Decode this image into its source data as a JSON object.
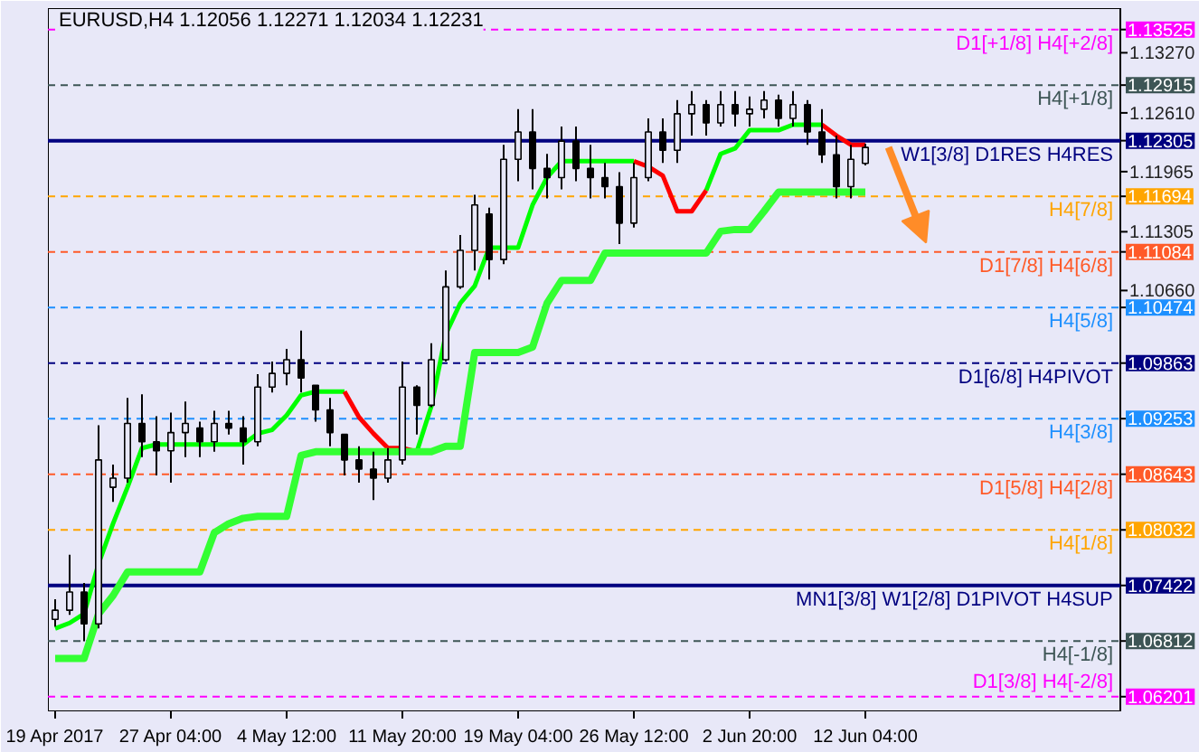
{
  "chart_data": {
    "type": "candlestick",
    "title": "EURUSD,H4 1.12056 1.12271 1.12034 1.12231",
    "categories": [
      "19 Apr 2017",
      null,
      null,
      null,
      null,
      null,
      null,
      null,
      "27 Apr 04:00",
      null,
      null,
      null,
      null,
      null,
      null,
      null,
      "4 May 12:00",
      null,
      null,
      null,
      null,
      null,
      null,
      null,
      "11 May 20:00",
      null,
      null,
      null,
      null,
      null,
      null,
      null,
      "19 May 04:00",
      null,
      null,
      null,
      null,
      null,
      null,
      null,
      "26 May 12:00",
      null,
      null,
      null,
      null,
      null,
      null,
      null,
      "2 Jun 20:00",
      null,
      null,
      null,
      null,
      null,
      null,
      null,
      "12 Jun 04:00"
    ],
    "ohlc": [
      [
        1.0705,
        1.0727,
        1.0697,
        1.0715
      ],
      [
        1.0715,
        1.0776,
        1.071,
        1.0735
      ],
      [
        1.0735,
        1.0745,
        1.0681,
        1.07
      ],
      [
        1.07,
        1.0918,
        1.0695,
        1.088
      ],
      [
        1.085,
        1.0875,
        1.0834,
        1.086
      ],
      [
        1.086,
        1.0948,
        1.0855,
        1.092
      ],
      [
        1.092,
        1.0952,
        1.0883,
        1.09
      ],
      [
        1.09,
        1.0928,
        1.0863,
        1.089
      ],
      [
        1.089,
        1.0932,
        1.0855,
        1.091
      ],
      [
        1.091,
        1.0944,
        1.0883,
        1.092
      ],
      [
        1.0915,
        1.0922,
        1.0883,
        1.09
      ],
      [
        1.09,
        1.0934,
        1.0889,
        1.092
      ],
      [
        1.092,
        1.0934,
        1.0908,
        1.0915
      ],
      [
        1.0915,
        1.0928,
        1.0875,
        1.09
      ],
      [
        1.09,
        1.0974,
        1.0895,
        1.096
      ],
      [
        1.096,
        1.0988,
        1.0954,
        1.0975
      ],
      [
        1.0975,
        1.1002,
        1.0962,
        1.099
      ],
      [
        1.099,
        1.1022,
        1.0954,
        1.097
      ],
      [
        1.0962,
        1.0962,
        1.0922,
        1.0935
      ],
      [
        1.0935,
        1.0948,
        1.0895,
        1.091
      ],
      [
        1.0908,
        1.0908,
        1.0863,
        1.088
      ],
      [
        1.088,
        1.0895,
        1.0855,
        1.087
      ],
      [
        1.087,
        1.0889,
        1.0836,
        1.086
      ],
      [
        1.086,
        1.0893,
        1.0855,
        1.088
      ],
      [
        1.088,
        1.0988,
        1.0875,
        1.096
      ],
      [
        1.096,
        1.0962,
        1.0908,
        1.094
      ],
      [
        1.094,
        1.1008,
        1.0938,
        1.099
      ],
      [
        1.099,
        1.1088,
        1.0988,
        1.107
      ],
      [
        1.107,
        1.1127,
        1.1068,
        1.111
      ],
      [
        1.111,
        1.1171,
        1.1088,
        1.116
      ],
      [
        1.115,
        1.1157,
        1.1078,
        1.11
      ],
      [
        1.11,
        1.1226,
        1.1095,
        1.121
      ],
      [
        1.121,
        1.1265,
        1.1186,
        1.124
      ],
      [
        1.124,
        1.1265,
        1.1177,
        1.12
      ],
      [
        1.12,
        1.1216,
        1.1167,
        1.119
      ],
      [
        1.119,
        1.1246,
        1.1177,
        1.123
      ],
      [
        1.123,
        1.1246,
        1.1186,
        1.12
      ],
      [
        1.12,
        1.1226,
        1.1167,
        1.119
      ],
      [
        1.119,
        1.1206,
        1.1167,
        1.118
      ],
      [
        1.118,
        1.1196,
        1.1117,
        1.114
      ],
      [
        1.114,
        1.1206,
        1.1135,
        1.119
      ],
      [
        1.119,
        1.1255,
        1.1186,
        1.124
      ],
      [
        1.124,
        1.1255,
        1.1206,
        1.122
      ],
      [
        1.122,
        1.1275,
        1.1206,
        1.126
      ],
      [
        1.126,
        1.1285,
        1.1236,
        1.127
      ],
      [
        1.127,
        1.1275,
        1.1236,
        1.125
      ],
      [
        1.125,
        1.1285,
        1.1246,
        1.127
      ],
      [
        1.127,
        1.1285,
        1.1246,
        1.126
      ],
      [
        1.126,
        1.1279,
        1.1246,
        1.1265
      ],
      [
        1.1265,
        1.1285,
        1.1255,
        1.1275
      ],
      [
        1.1275,
        1.1281,
        1.1246,
        1.1255
      ],
      [
        1.1255,
        1.1285,
        1.1246,
        1.127
      ],
      [
        1.127,
        1.1275,
        1.1226,
        1.124
      ],
      [
        1.124,
        1.1265,
        1.1206,
        1.1215
      ],
      [
        1.1215,
        1.1236,
        1.1167,
        1.118
      ],
      [
        1.118,
        1.1226,
        1.1167,
        1.121
      ],
      [
        1.12056,
        1.12271,
        1.12034,
        1.12231
      ]
    ],
    "series": [
      {
        "type": "line",
        "color": "#00ff00",
        "values": [
          1.0695,
          1.0701,
          1.0711,
          1.0766,
          1.081,
          1.085,
          1.0893,
          1.0897,
          1.0897,
          1.0897,
          1.0897,
          1.0897,
          1.0897,
          1.0897,
          1.0909,
          1.0913,
          1.0929,
          1.0951,
          1.0955,
          1.0955,
          1.0955,
          null,
          null,
          null,
          null,
          1.0889,
          1.0939,
          1.1018,
          1.1052,
          1.1071,
          1.1113,
          1.1113,
          1.1113,
          1.116,
          1.119,
          1.1208,
          1.1208,
          1.1208,
          1.1208,
          1.1208,
          1.1208,
          null,
          null,
          null,
          null,
          1.1176,
          1.1216,
          1.1222,
          1.1242,
          1.1242,
          1.1242,
          1.1248,
          1.1248,
          1.1248,
          null,
          null,
          null
        ]
      },
      {
        "type": "line",
        "color": "#ff0000",
        "values": [
          null,
          null,
          null,
          null,
          null,
          null,
          null,
          null,
          null,
          null,
          null,
          null,
          null,
          null,
          null,
          null,
          null,
          null,
          null,
          null,
          1.0955,
          1.0927,
          1.0909,
          1.0893,
          1.0893,
          1.0889,
          null,
          null,
          null,
          null,
          null,
          null,
          null,
          null,
          null,
          null,
          null,
          null,
          null,
          null,
          1.1208,
          1.1202,
          1.1192,
          1.1153,
          1.1153,
          1.1176,
          null,
          null,
          null,
          null,
          null,
          null,
          null,
          1.1248,
          1.1236,
          1.1226,
          1.1226
        ]
      },
      {
        "type": "line",
        "color": "#33ff33",
        "values": [
          1.0662,
          1.0662,
          1.0662,
          1.0711,
          1.0731,
          1.0757,
          1.0757,
          1.0757,
          1.0757,
          1.0757,
          1.0757,
          1.08,
          1.081,
          1.0816,
          1.0818,
          1.0818,
          1.0818,
          1.0885,
          1.0889,
          1.0889,
          1.0889,
          1.0889,
          1.0889,
          1.0889,
          1.0889,
          1.0889,
          1.0889,
          1.0895,
          1.0895,
          1.0998,
          1.0998,
          1.0998,
          1.0998,
          1.1004,
          1.1052,
          1.1077,
          1.1077,
          1.1077,
          1.1107,
          1.1107,
          1.1107,
          1.1107,
          1.1107,
          1.1107,
          1.1107,
          1.1107,
          1.1131,
          1.1133,
          1.1133,
          1.1153,
          1.1174,
          1.1174,
          1.1174,
          1.1174,
          1.1174,
          1.1174,
          1.1174
        ]
      }
    ],
    "ylim": [
      1.0604,
      1.1376
    ],
    "yticks": [
      {
        "value": 1.13525,
        "label": "1.13525"
      },
      {
        "value": 1.1327,
        "label": "1.13270"
      },
      {
        "value": 1.12915,
        "label": "1.12915"
      },
      {
        "value": 1.1261,
        "label": "1.12610"
      },
      {
        "value": 1.12305,
        "label": "1.12305"
      },
      {
        "value": 1.11965,
        "label": "1.11965"
      },
      {
        "value": 1.11694,
        "label": "1.11694"
      },
      {
        "value": 1.11305,
        "label": "1.11305"
      },
      {
        "value": 1.11084,
        "label": "1.11084"
      },
      {
        "value": 1.1066,
        "label": "1.10660"
      },
      {
        "value": 1.10474,
        "label": "1.10474"
      },
      {
        "value": 1.09863,
        "label": "1.09863"
      },
      {
        "value": 1.09253,
        "label": "1.09253"
      },
      {
        "value": 1.08643,
        "label": "1.08643"
      },
      {
        "value": 1.08032,
        "label": "1.08032"
      },
      {
        "value": 1.07422,
        "label": "1.07422"
      },
      {
        "value": 1.06812,
        "label": "1.06812"
      },
      {
        "value": 1.06201,
        "label": "1.06201"
      }
    ],
    "ref_lines": [
      {
        "axis": "y",
        "value": 1.13525,
        "label": "D1[+1/8] H4[+2/8]",
        "color": "#ff00ff",
        "line_style": "dashed"
      },
      {
        "axis": "y",
        "value": 1.12915,
        "label": "H4[+1/8]",
        "color": "#3d5555",
        "line_style": "dashed"
      },
      {
        "axis": "y",
        "value": 1.12305,
        "label": "W1[3/8] D1RES H4RES",
        "color": "#000080",
        "line_style": "solid"
      },
      {
        "axis": "y",
        "value": 1.11694,
        "label": "H4[7/8]",
        "color": "#ffa500",
        "line_style": "dashed"
      },
      {
        "axis": "y",
        "value": 1.11084,
        "label": "D1[7/8] H4[6/8]",
        "color": "#ff5a28",
        "line_style": "dashed"
      },
      {
        "axis": "y",
        "value": 1.10474,
        "label": "H4[5/8]",
        "color": "#1e90ff",
        "line_style": "dashed"
      },
      {
        "axis": "y",
        "value": 1.09863,
        "label": "D1[6/8] H4PIVOT",
        "color": "#000080",
        "line_style": "dashed"
      },
      {
        "axis": "y",
        "value": 1.09253,
        "label": "H4[3/8]",
        "color": "#1e90ff",
        "line_style": "dashed"
      },
      {
        "axis": "y",
        "value": 1.08643,
        "label": "D1[5/8] H4[2/8]",
        "color": "#ff5a28",
        "line_style": "dashed"
      },
      {
        "axis": "y",
        "value": 1.08032,
        "label": "H4[1/8]",
        "color": "#ffa500",
        "line_style": "dashed"
      },
      {
        "axis": "y",
        "value": 1.07422,
        "label": "MN1[3/8] W1[2/8] D1PIVOT H4SUP",
        "color": "#000080",
        "line_style": "solid"
      },
      {
        "axis": "y",
        "value": 1.06812,
        "label": "H4[-1/8]",
        "color": "#3d5555",
        "line_style": "dashed"
      },
      {
        "axis": "y",
        "value": 1.06201,
        "label": "D1[3/8] H4[-2/8]",
        "color": "#ff00ff",
        "line_style": "dashed"
      }
    ]
  }
}
